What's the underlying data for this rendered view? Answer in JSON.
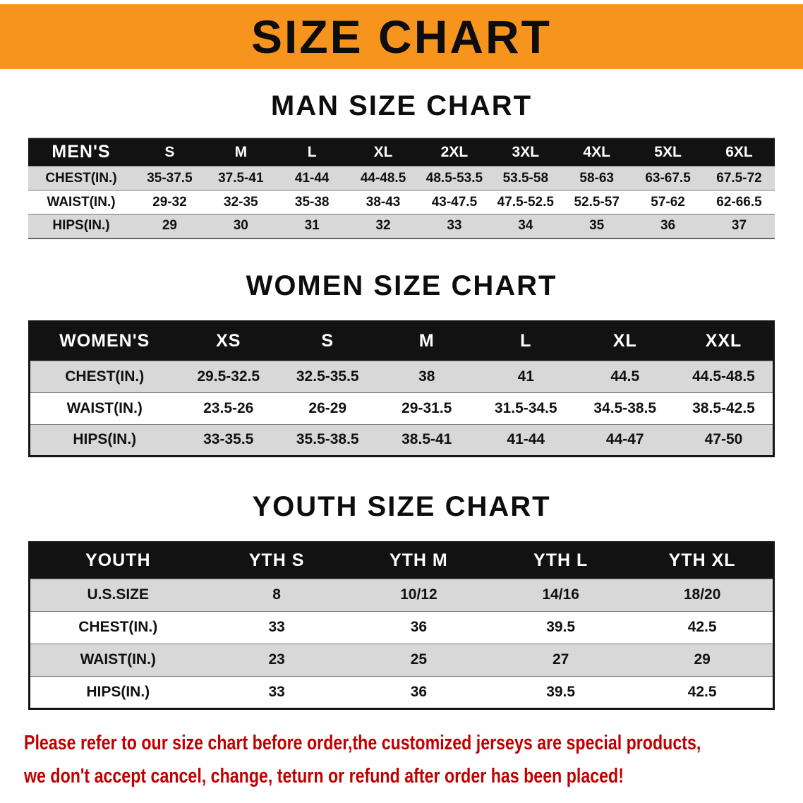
{
  "banner": {
    "title": "SIZE CHART"
  },
  "colors": {
    "banner_bg": "#F7941D",
    "header_bg": "#121212",
    "row_alt": "#D8D8D8",
    "disclaimer": "#C00000"
  },
  "sections": [
    {
      "heading": "MAN SIZE CHART",
      "table_label": "MEN'S",
      "columns": [
        "S",
        "M",
        "L",
        "XL",
        "2XL",
        "3XL",
        "4XL",
        "5XL",
        "6XL"
      ],
      "rows": [
        {
          "label": "CHEST(IN.)",
          "values": [
            "35-37.5",
            "37.5-41",
            "41-44",
            "44-48.5",
            "48.5-53.5",
            "53.5-58",
            "58-63",
            "63-67.5",
            "67.5-72"
          ]
        },
        {
          "label": "WAIST(IN.)",
          "values": [
            "29-32",
            "32-35",
            "35-38",
            "38-43",
            "43-47.5",
            "47.5-52.5",
            "52.5-57",
            "57-62",
            "62-66.5"
          ]
        },
        {
          "label": "HIPS(IN.)",
          "values": [
            "29",
            "30",
            "31",
            "32",
            "33",
            "34",
            "35",
            "36",
            "37"
          ]
        }
      ]
    },
    {
      "heading": "WOMEN SIZE CHART",
      "table_label": "WOMEN'S",
      "columns": [
        "XS",
        "S",
        "M",
        "L",
        "XL",
        "XXL"
      ],
      "rows": [
        {
          "label": "CHEST(IN.)",
          "values": [
            "29.5-32.5",
            "32.5-35.5",
            "38",
            "41",
            "44.5",
            "44.5-48.5"
          ]
        },
        {
          "label": "WAIST(IN.)",
          "values": [
            "23.5-26",
            "26-29",
            "29-31.5",
            "31.5-34.5",
            "34.5-38.5",
            "38.5-42.5"
          ]
        },
        {
          "label": "HIPS(IN.)",
          "values": [
            "33-35.5",
            "35.5-38.5",
            "38.5-41",
            "41-44",
            "44-47",
            "47-50"
          ]
        }
      ]
    },
    {
      "heading": "YOUTH SIZE CHART",
      "table_label": "YOUTH",
      "columns": [
        "YTH S",
        "YTH M",
        "YTH L",
        "YTH XL"
      ],
      "rows": [
        {
          "label": "U.S.SIZE",
          "values": [
            "8",
            "10/12",
            "14/16",
            "18/20"
          ]
        },
        {
          "label": "CHEST(IN.)",
          "values": [
            "33",
            "36",
            "39.5",
            "42.5"
          ]
        },
        {
          "label": "WAIST(IN.)",
          "values": [
            "23",
            "25",
            "27",
            "29"
          ]
        },
        {
          "label": "HIPS(IN.)",
          "values": [
            "33",
            "36",
            "39.5",
            "42.5"
          ]
        }
      ]
    }
  ],
  "disclaimer": {
    "line1": "Please refer to our size chart before order,the customized jerseys are special products,",
    "line2": "we don't accept cancel, change, teturn or refund after order has been placed!"
  }
}
